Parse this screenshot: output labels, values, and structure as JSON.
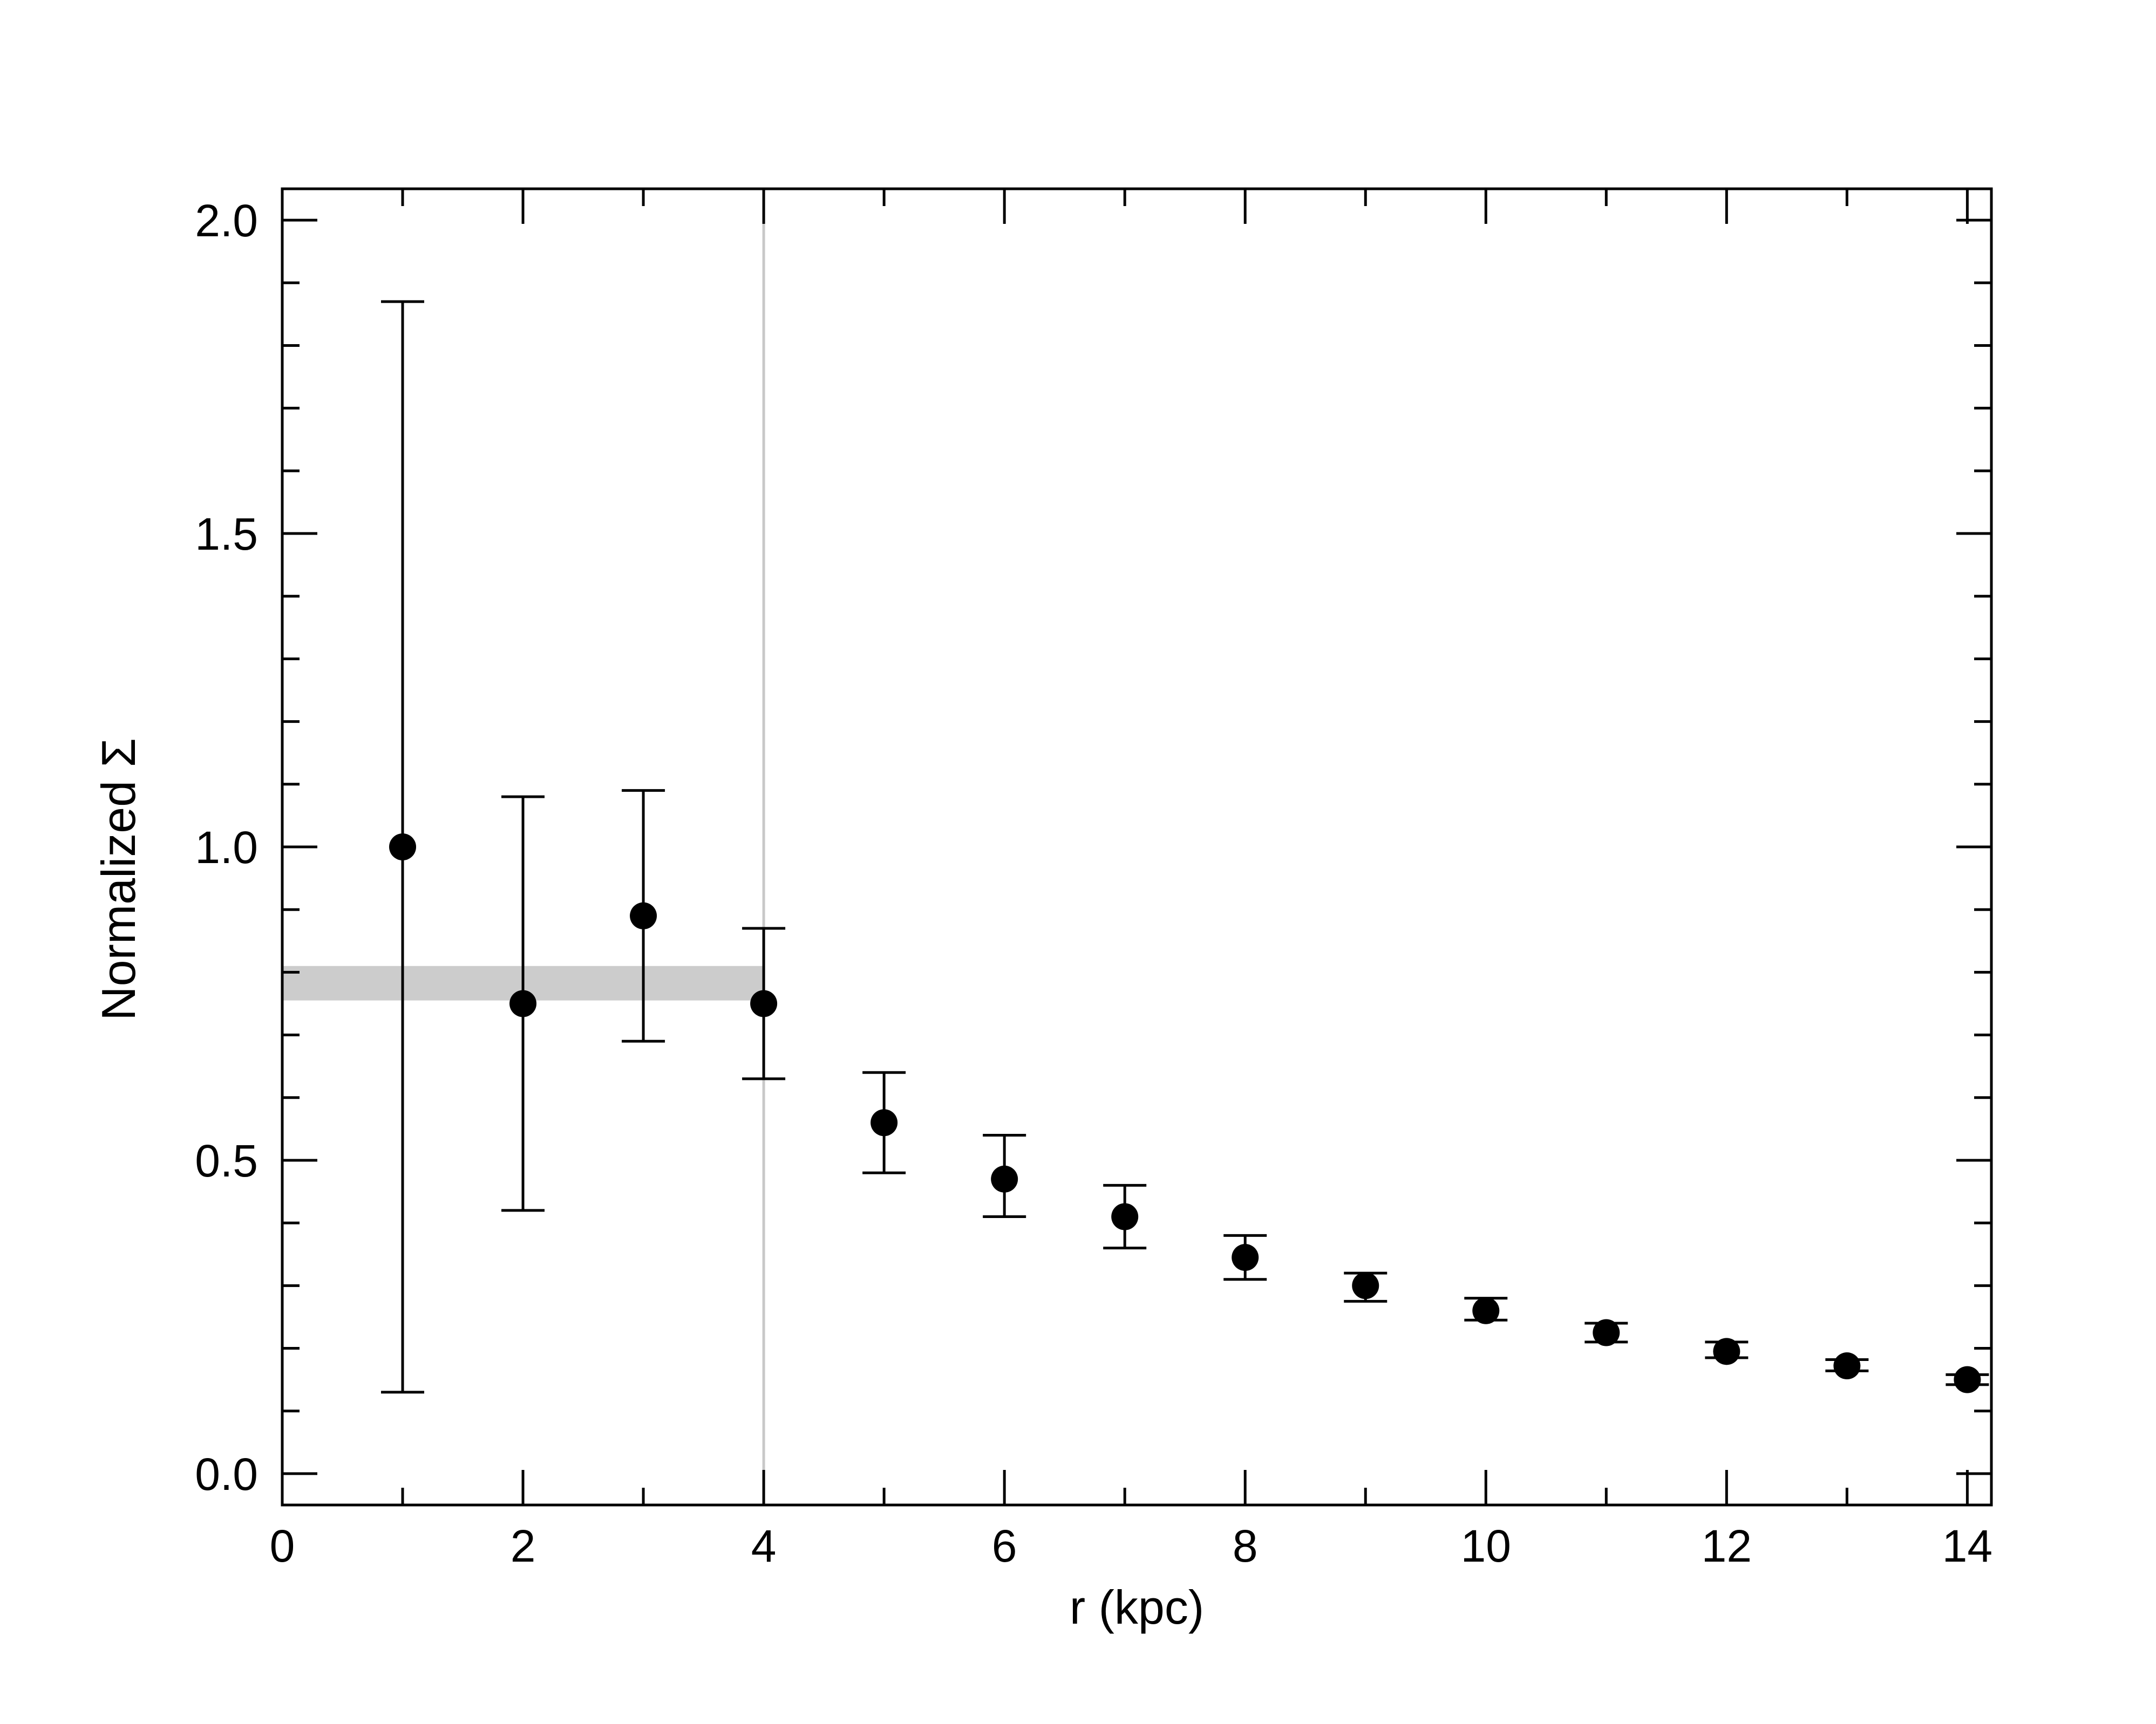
{
  "chart_data": {
    "type": "scatter",
    "xlabel": "r (kpc)",
    "ylabel": "Normalized Σ",
    "xlim": [
      0,
      14.2
    ],
    "ylim": [
      -0.05,
      2.05
    ],
    "x_ticks": [
      0,
      2,
      4,
      6,
      8,
      10,
      12,
      14
    ],
    "x_minor_step": 1,
    "y_ticks": [
      0.0,
      0.5,
      1.0,
      1.5,
      2.0
    ],
    "y_minor_step": 0.1,
    "x_tick_labels": [
      "0",
      "2",
      "4",
      "6",
      "8",
      "10",
      "12",
      "14"
    ],
    "y_tick_labels": [
      "0.0",
      "0.5",
      "1.0",
      "1.5",
      "2.0"
    ],
    "grid": false,
    "legend": false,
    "points": [
      {
        "x": 1,
        "y": 1.0,
        "ylow": 0.13,
        "yhigh": 1.87
      },
      {
        "x": 2,
        "y": 0.75,
        "ylow": 0.42,
        "yhigh": 1.08
      },
      {
        "x": 3,
        "y": 0.89,
        "ylow": 0.69,
        "yhigh": 1.09
      },
      {
        "x": 4,
        "y": 0.75,
        "ylow": 0.63,
        "yhigh": 0.87
      },
      {
        "x": 5,
        "y": 0.56,
        "ylow": 0.48,
        "yhigh": 0.64
      },
      {
        "x": 6,
        "y": 0.47,
        "ylow": 0.41,
        "yhigh": 0.54
      },
      {
        "x": 7,
        "y": 0.41,
        "ylow": 0.36,
        "yhigh": 0.46
      },
      {
        "x": 8,
        "y": 0.345,
        "ylow": 0.31,
        "yhigh": 0.38
      },
      {
        "x": 9,
        "y": 0.3,
        "ylow": 0.275,
        "yhigh": 0.32
      },
      {
        "x": 10,
        "y": 0.26,
        "ylow": 0.245,
        "yhigh": 0.28
      },
      {
        "x": 11,
        "y": 0.225,
        "ylow": 0.21,
        "yhigh": 0.24
      },
      {
        "x": 12,
        "y": 0.195,
        "ylow": 0.185,
        "yhigh": 0.21
      },
      {
        "x": 13,
        "y": 0.172,
        "ylow": 0.164,
        "yhigh": 0.182
      },
      {
        "x": 14,
        "y": 0.15,
        "ylow": 0.142,
        "yhigh": 0.158
      }
    ],
    "reference_line": {
      "x": 4,
      "color": "#c8c8c8"
    },
    "shaded_band": {
      "x_start": 0,
      "x_end": 4,
      "y_low": 0.755,
      "y_high": 0.81,
      "color": "#cccccc"
    },
    "marker_color": "#000000"
  }
}
